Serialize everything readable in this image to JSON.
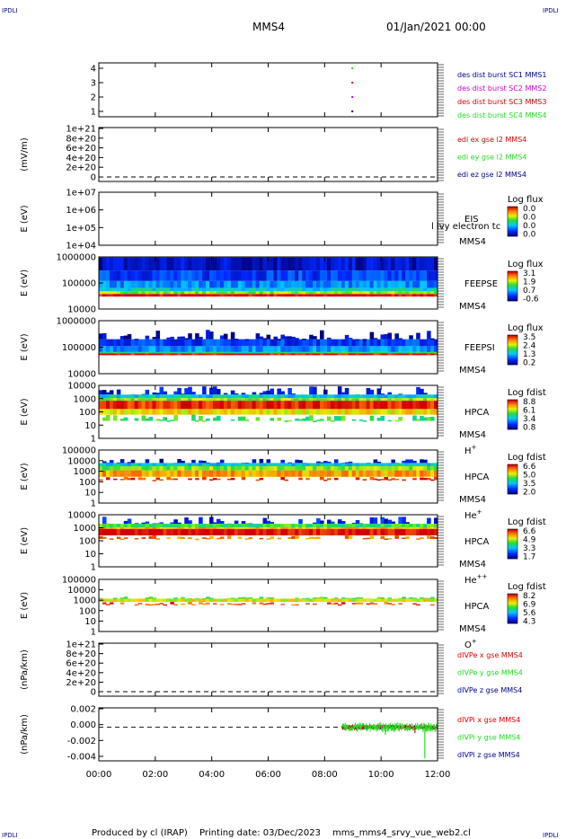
{
  "header": {
    "corner_label": "IPDLI",
    "spacecraft": "MMS4",
    "datetime": "01/Jan/2021 00:00"
  },
  "footer": {
    "credit": "Produced by cl (IRAP)",
    "printing": "Printing date: 03/Dec/2023",
    "file": "mms_mms4_srvy_vue_web2.cl"
  },
  "palette": {
    "dark_blue": "#00008b",
    "blue": "#1f3cff",
    "cyan": "#00c8ff",
    "green": "#22dd22",
    "yellow": "#e8f000",
    "orange": "#ff8000",
    "red": "#dd0000",
    "magenta": "#cc00cc"
  },
  "chart_data": [
    {
      "type": "scatter",
      "panel": "burst",
      "yticks": [
        "4",
        "3",
        "2",
        "1"
      ],
      "ylim": [
        0.5,
        4.5
      ],
      "xlim_hours": [
        0,
        12
      ],
      "legend": [
        {
          "label": "des dist burst SC1 MMS1",
          "color": "#00008b",
          "y": 1
        },
        {
          "label": "des dist burst SC2 MMS2",
          "color": "#cc00cc",
          "y": 2
        },
        {
          "label": "des dist burst SC3 MMS3",
          "color": "#dd0000",
          "y": 3
        },
        {
          "label": "des dist burst SC4 MMS4",
          "color": "#22dd22",
          "y": 4
        }
      ],
      "points": [
        {
          "x": 8.95,
          "y": 1
        },
        {
          "x": 8.95,
          "y": 2
        },
        {
          "x": 8.95,
          "y": 3
        },
        {
          "x": 8.95,
          "y": 4
        }
      ]
    },
    {
      "type": "line",
      "panel": "edi",
      "ylabel": "(mV/m)",
      "yticks": [
        "1e+21",
        "8e+20",
        "6e+20",
        "4e+20",
        "2e+20",
        "0"
      ],
      "ylim": [
        0,
        1e+21
      ],
      "legend": [
        {
          "label": "edi ex gse l2 MMS4",
          "color": "#dd0000"
        },
        {
          "label": "edi ey gse l2 MMS4",
          "color": "#22dd22"
        },
        {
          "label": "edi ez gse l2 MMS4",
          "color": "#00008b"
        }
      ],
      "zero_line": 0
    },
    {
      "type": "heatmap",
      "panel": "eis",
      "ylabel": "E (eV)",
      "yticks": [
        "1e+07",
        "1e+06",
        "1e+05",
        "1e+04"
      ],
      "ylim": [
        10000,
        10000000
      ],
      "instrument": [
        "EIS",
        "MMS4"
      ],
      "overlay_text": "l lvy electron tc",
      "colorbar": {
        "title": "Log flux",
        "ticks": [
          "0.0",
          "0.0",
          "0.0",
          "0.0"
        ]
      },
      "coverage": "none"
    },
    {
      "type": "heatmap",
      "panel": "feepse",
      "ylabel": "E (eV)",
      "yticks": [
        "1000000",
        "100000",
        "10000"
      ],
      "ylim": [
        10000,
        1000000
      ],
      "instrument": [
        "FEEPSE",
        "MMS4"
      ],
      "colorbar": {
        "title": "Log flux",
        "ticks": [
          "3.1",
          "1.9",
          "0.7",
          "-0.6"
        ]
      },
      "coverage_hours": [
        0,
        12
      ],
      "bands": [
        {
          "emin": 30000,
          "emax": 38000,
          "level": 1.0
        },
        {
          "emin": 38000,
          "emax": 48000,
          "level": 0.62
        },
        {
          "emin": 48000,
          "emax": 65000,
          "level": 0.42
        },
        {
          "emin": 65000,
          "emax": 120000,
          "level": 0.3
        },
        {
          "emin": 120000,
          "emax": 300000,
          "level": 0.2
        },
        {
          "emin": 300000,
          "emax": 950000,
          "level": 0.1
        }
      ]
    },
    {
      "type": "heatmap",
      "panel": "feepsi",
      "ylabel": "E (eV)",
      "yticks": [
        "1000000",
        "100000",
        "10000"
      ],
      "ylim": [
        10000,
        1000000
      ],
      "instrument": [
        "FEEPSI",
        "MMS4"
      ],
      "colorbar": {
        "title": "Log flux",
        "ticks": [
          "3.5",
          "2.4",
          "1.3",
          "0.2"
        ]
      },
      "coverage_hours": [
        0,
        12
      ],
      "bands": [
        {
          "emin": 50000,
          "emax": 58000,
          "level": 1.0
        },
        {
          "emin": 58000,
          "emax": 66000,
          "level": 0.5
        },
        {
          "emin": 66000,
          "emax": 110000,
          "level": 0.32
        },
        {
          "emin": 110000,
          "emax": 200000,
          "level": 0.2
        },
        {
          "emin": 200000,
          "emax": 450000,
          "level": 0.08,
          "sparse": true
        }
      ]
    },
    {
      "type": "heatmap",
      "panel": "hpca_h",
      "ylabel": "E (eV)",
      "yticks": [
        "10000",
        "1000",
        "100",
        "10",
        "1"
      ],
      "ylim": [
        1,
        30000
      ],
      "instrument": [
        "HPCA",
        "MMS4"
      ],
      "species": "H",
      "species_charge": "+",
      "colorbar": {
        "title": "Log fdist",
        "ticks": [
          "8.8",
          "6.1",
          "3.4",
          "0.8"
        ]
      },
      "coverage_hours": [
        0,
        12
      ],
      "bands": [
        {
          "emin": 5000,
          "emax": 25000,
          "level": 0.12,
          "sparse": true
        },
        {
          "emin": 2500,
          "emax": 5000,
          "level": 0.4
        },
        {
          "emin": 1500,
          "emax": 2500,
          "level": 0.62
        },
        {
          "emin": 300,
          "emax": 1500,
          "level": 0.95
        },
        {
          "emin": 100,
          "emax": 300,
          "level": 0.72
        },
        {
          "emin": 30,
          "emax": 100,
          "level": 0.55,
          "sparse": true
        }
      ]
    },
    {
      "type": "heatmap",
      "panel": "hpca_he",
      "ylabel": "E (eV)",
      "yticks": [
        "100000",
        "10000",
        "1000",
        "100",
        "10",
        "1"
      ],
      "ylim": [
        1,
        100000
      ],
      "instrument": [
        "HPCA",
        "MMS4"
      ],
      "species": "He",
      "species_charge": "+",
      "colorbar": {
        "title": "Log fdist",
        "ticks": [
          "6.6",
          "5.0",
          "3.5",
          "2.0"
        ]
      },
      "coverage_hours": [
        0,
        12
      ],
      "bands": [
        {
          "emin": 6000,
          "emax": 15000,
          "level": 0.1,
          "sparse": true
        },
        {
          "emin": 3000,
          "emax": 6000,
          "level": 0.4
        },
        {
          "emin": 1200,
          "emax": 3000,
          "level": 0.62
        },
        {
          "emin": 300,
          "emax": 1200,
          "level": 0.8
        },
        {
          "emin": 150,
          "emax": 300,
          "level": 0.95,
          "sparse": true
        }
      ]
    },
    {
      "type": "heatmap",
      "panel": "hpca_hepp",
      "ylabel": "E (eV)",
      "yticks": [
        "10000",
        "1000",
        "100",
        "10",
        "1"
      ],
      "ylim": [
        1,
        30000
      ],
      "instrument": [
        "HPCA",
        "MMS4"
      ],
      "species": "He",
      "species_charge": "++",
      "colorbar": {
        "title": "Log fdist",
        "ticks": [
          "6.6",
          "4.9",
          "3.3",
          "1.7"
        ]
      },
      "coverage_hours": [
        0,
        12
      ],
      "bands": [
        {
          "emin": 5000,
          "emax": 20000,
          "level": 0.15,
          "sparse": true
        },
        {
          "emin": 2500,
          "emax": 5000,
          "level": 0.55
        },
        {
          "emin": 1800,
          "emax": 2500,
          "level": 0.78
        },
        {
          "emin": 500,
          "emax": 1800,
          "level": 1.0
        },
        {
          "emin": 250,
          "emax": 500,
          "level": 0.85,
          "sparse": true
        }
      ]
    },
    {
      "type": "heatmap",
      "panel": "hpca_o",
      "ylabel": "E (eV)",
      "yticks": [
        "100000",
        "10000",
        "1000",
        "100",
        "10",
        "1"
      ],
      "ylim": [
        1,
        100000
      ],
      "instrument": [
        "HPCA",
        "MMS4"
      ],
      "species": "O",
      "species_charge": "+",
      "colorbar": {
        "title": "Log fdist",
        "ticks": [
          "8.2",
          "6.9",
          "5.6",
          "4.3"
        ]
      },
      "coverage_hours": [
        0,
        12
      ],
      "bands": [
        {
          "emin": 1400,
          "emax": 2200,
          "level": 0.55,
          "sparse": true
        },
        {
          "emin": 700,
          "emax": 1400,
          "level": 0.7
        },
        {
          "emin": 400,
          "emax": 700,
          "level": 0.9,
          "sparse": true
        }
      ]
    },
    {
      "type": "line",
      "panel": "divpe",
      "ylabel": "(nPa/km)",
      "yticks": [
        "1e+21",
        "8e+20",
        "6e+20",
        "4e+20",
        "2e+20",
        "0"
      ],
      "ylim": [
        0,
        1e+21
      ],
      "legend": [
        {
          "label": "dIVPe x gse MMS4",
          "color": "#dd0000"
        },
        {
          "label": "dIVPe y gse MMS4",
          "color": "#22dd22"
        },
        {
          "label": "dIVPe z gse MMS4",
          "color": "#00008b"
        }
      ],
      "zero_line": 0
    },
    {
      "type": "line",
      "panel": "divpi",
      "ylabel": "(nPa/km)",
      "yticks": [
        "0.002",
        "0.000",
        "-0.002",
        "-0.004"
      ],
      "ylim": [
        -0.0052,
        0.003
      ],
      "xlabel_ticks": [
        "00:00",
        "02:00",
        "04:00",
        "06:00",
        "08:00",
        "10:00",
        "12:00"
      ],
      "xlim_hours": [
        0,
        12
      ],
      "legend": [
        {
          "label": "dIVPi x gse MMS4",
          "color": "#dd0000"
        },
        {
          "label": "dIVPi y gse MMS4",
          "color": "#22dd22"
        },
        {
          "label": "dIVPi z gse MMS4",
          "color": "#00008b"
        }
      ],
      "zero_line": 0,
      "series_start_hour": 8.6,
      "series_end_hour": 12,
      "series_amplitude": {
        "x": 0.0004,
        "y": 0.0007,
        "z": 0.0003
      },
      "spikes": [
        {
          "series": "y",
          "x": 10.15,
          "value": -0.0012
        },
        {
          "series": "y",
          "x": 11.55,
          "value": -0.0048
        },
        {
          "series": "x",
          "x": 11.2,
          "value": -0.0009
        }
      ]
    }
  ]
}
